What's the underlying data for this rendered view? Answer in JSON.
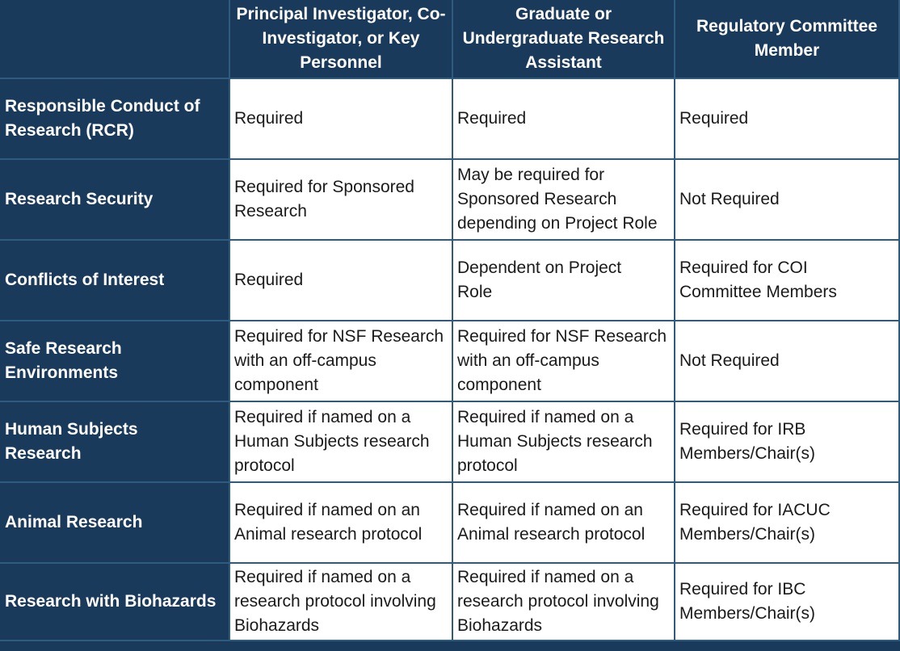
{
  "colors": {
    "navy": "#1a3a5c",
    "grid_line": "#2e5b7e",
    "cell_background": "#ffffff",
    "body_text": "#1a1a1a",
    "header_text": "#ffffff"
  },
  "table": {
    "corner_label": "",
    "columns": [
      "Principal Investigator, Co-\nInvestigator, or Key\nPersonnel",
      "Graduate or\nUndergraduate Research\nAssistant",
      "Regulatory Committee\nMember"
    ],
    "rows": [
      {
        "header": "Responsible Conduct of\nResearch (RCR)",
        "cells": [
          "Required",
          "Required",
          "Required"
        ]
      },
      {
        "header": "Research Security",
        "cells": [
          "Required for Sponsored\nResearch",
          "May be required for\nSponsored Research\ndepending on Project Role",
          "Not Required"
        ]
      },
      {
        "header": "Conflicts of Interest",
        "cells": [
          "Required",
          "Dependent on Project\nRole",
          "Required for COI\nCommittee Members"
        ]
      },
      {
        "header": "Safe Research\nEnvironments",
        "cells": [
          "Required for NSF Research\nwith an off-campus\ncomponent",
          "Required for NSF Research\nwith an off-campus\ncomponent",
          "Not Required"
        ]
      },
      {
        "header": "Human Subjects\nResearch",
        "cells": [
          "Required if named on a\nHuman Subjects research\nprotocol",
          "Required if named on a\nHuman Subjects research\nprotocol",
          "Required for IRB\nMembers/Chair(s)"
        ]
      },
      {
        "header": "Animal Research",
        "cells": [
          "Required if named on an\nAnimal research protocol",
          "Required if named on an\nAnimal research protocol",
          "Required for IACUC\nMembers/Chair(s)"
        ]
      },
      {
        "header": "Research with Biohazards",
        "cells": [
          "Required if named on a\nresearch protocol involving\nBiohazards",
          "Required if named on a\nresearch protocol involving\nBiohazards",
          "Required for IBC\nMembers/Chair(s)"
        ]
      }
    ]
  }
}
